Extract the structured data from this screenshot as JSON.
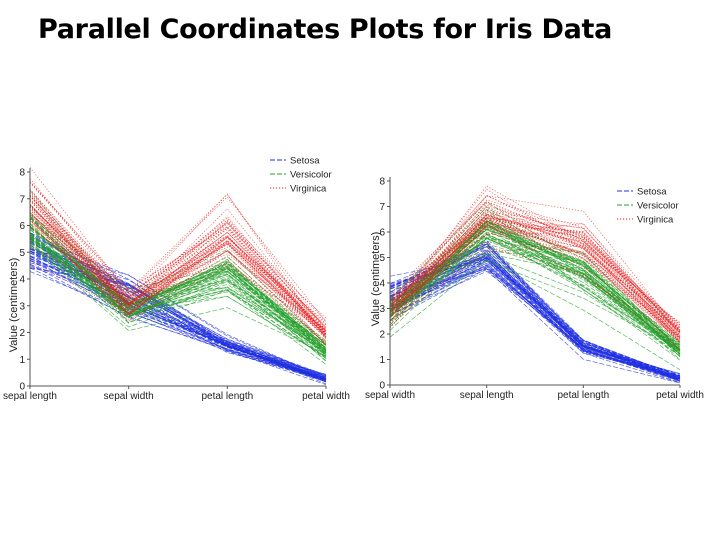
{
  "title": "Parallel Coordinates Plots for Iris Data",
  "colors": {
    "setosa": "#1f2fe0",
    "versicolor": "#22a02a",
    "virginica": "#e61e1e",
    "axis": "#555555"
  },
  "chart_data": [
    {
      "type": "parallel-coordinates",
      "title": "",
      "ylabel": "Value (centimeters)",
      "ylim": [
        0,
        8
      ],
      "yticks": [
        "0",
        "1",
        "2",
        "3",
        "4",
        "5",
        "6",
        "7",
        "8"
      ],
      "categories": [
        "sepal length",
        "sepal width",
        "petal length",
        "petal width"
      ],
      "legend": {
        "position": "top-right",
        "entries": [
          "Setosa",
          "Versicolor",
          "Virginica"
        ]
      },
      "series": [
        {
          "name": "Setosa",
          "count": 50,
          "mean": [
            5.0,
            3.4,
            1.5,
            0.25
          ],
          "spread": [
            0.35,
            0.38,
            0.17,
            0.1
          ]
        },
        {
          "name": "Versicolor",
          "count": 50,
          "mean": [
            5.9,
            2.8,
            4.3,
            1.3
          ],
          "spread": [
            0.5,
            0.3,
            0.45,
            0.2
          ]
        },
        {
          "name": "Virginica",
          "count": 50,
          "mean": [
            6.6,
            3.0,
            5.55,
            2.0
          ],
          "spread": [
            0.6,
            0.32,
            0.55,
            0.27
          ]
        }
      ]
    },
    {
      "type": "parallel-coordinates",
      "title": "",
      "ylabel": "Value (centimeters)",
      "ylim": [
        0,
        8
      ],
      "yticks": [
        "0",
        "1",
        "2",
        "3",
        "4",
        "5",
        "6",
        "7",
        "8"
      ],
      "categories": [
        "sepal width",
        "sepal length",
        "petal length",
        "petal width"
      ],
      "legend": {
        "position": "top-right",
        "entries": [
          "Setosa",
          "Versicolor",
          "Virginica"
        ]
      },
      "series": [
        {
          "name": "Setosa",
          "count": 50,
          "mean": [
            3.4,
            5.0,
            1.5,
            0.25
          ],
          "spread": [
            0.38,
            0.35,
            0.17,
            0.1
          ]
        },
        {
          "name": "Versicolor",
          "count": 50,
          "mean": [
            2.8,
            5.9,
            4.3,
            1.3
          ],
          "spread": [
            0.3,
            0.5,
            0.45,
            0.2
          ]
        },
        {
          "name": "Virginica",
          "count": 50,
          "mean": [
            3.0,
            6.6,
            5.55,
            2.0
          ],
          "spread": [
            0.32,
            0.6,
            0.55,
            0.27
          ]
        }
      ]
    }
  ]
}
